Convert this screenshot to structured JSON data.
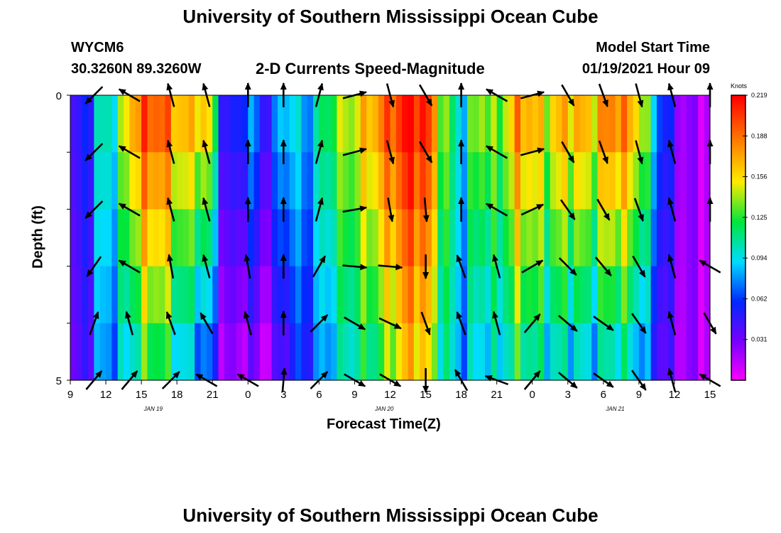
{
  "header": {
    "title": "University of Southern Mississippi Ocean Cube",
    "station": "WYCM6",
    "coords": "30.3260N 89.3260W",
    "subtitle": "2-D Currents Speed-Magnitude",
    "model_start_label": "Model Start Time",
    "model_start_value": "01/19/2021 Hour 09",
    "footer_title": "University of Southern Mississippi Ocean Cube"
  },
  "chart_data": {
    "type": "heatmap",
    "title": "2-D Currents Speed-Magnitude",
    "xlabel": "Forecast Time(Z)",
    "ylabel": "Depth (ft)",
    "x_range_hours": [
      0,
      54
    ],
    "ylim": [
      0,
      5
    ],
    "y_inverted": true,
    "x_tick_labels": [
      "9",
      "12",
      "15",
      "18",
      "21",
      "0",
      "3",
      "6",
      "9",
      "12",
      "15",
      "18",
      "21",
      "0",
      "3",
      "6",
      "9",
      "12",
      "15"
    ],
    "y_tick_labels": [
      "0",
      "5"
    ],
    "date_labels": [
      {
        "text": "JAN 19",
        "hour": 7
      },
      {
        "text": "JAN 20",
        "hour": 26.5
      },
      {
        "text": "JAN 21",
        "hour": 46
      }
    ],
    "colorbar": {
      "unit": "Knots",
      "ticks": [
        "0.219",
        "0.188",
        "0.156",
        "0.125",
        "0.094",
        "0.062",
        "0.031"
      ],
      "min": 0.0,
      "max": 0.219
    },
    "depth_layers": 5,
    "speed_profile_knots": {
      "hours": [
        0,
        1.5,
        2.5,
        4,
        5,
        6,
        7,
        8,
        9,
        10,
        11,
        12,
        13,
        14,
        15,
        16,
        17,
        18,
        20,
        22,
        24,
        26,
        28,
        29,
        30,
        31,
        32,
        33,
        34,
        35,
        36,
        37,
        38,
        39,
        40,
        42,
        44,
        46,
        48,
        50,
        51,
        52,
        53,
        54
      ],
      "surface": [
        0.03,
        0.06,
        0.1,
        0.11,
        0.17,
        0.19,
        0.2,
        0.19,
        0.17,
        0.16,
        0.17,
        0.14,
        0.04,
        0.05,
        0.08,
        0.06,
        0.05,
        0.1,
        0.08,
        0.13,
        0.15,
        0.18,
        0.21,
        0.219,
        0.21,
        0.16,
        0.12,
        0.09,
        0.13,
        0.15,
        0.12,
        0.16,
        0.18,
        0.17,
        0.15,
        0.17,
        0.16,
        0.19,
        0.16,
        0.06,
        0.04,
        0.02,
        0.02,
        0.02
      ],
      "bottom": [
        0.02,
        0.05,
        0.08,
        0.08,
        0.1,
        0.12,
        0.13,
        0.12,
        0.1,
        0.09,
        0.08,
        0.06,
        0.02,
        0.02,
        0.03,
        0.02,
        0.02,
        0.05,
        0.06,
        0.09,
        0.11,
        0.12,
        0.16,
        0.17,
        0.16,
        0.12,
        0.1,
        0.08,
        0.09,
        0.1,
        0.09,
        0.11,
        0.12,
        0.11,
        0.1,
        0.1,
        0.09,
        0.11,
        0.09,
        0.04,
        0.03,
        0.02,
        0.02,
        0.02
      ]
    },
    "vector_columns_hours": [
      2,
      5,
      8.5,
      11.5,
      15,
      18,
      21,
      24,
      27,
      30,
      33,
      36,
      39,
      42,
      45,
      48,
      50.8,
      54
    ],
    "vector_angles_deg": [
      [
        225,
        300,
        345,
        345,
        0,
        0,
        15,
        75,
        165,
        150,
        0,
        300,
        75,
        150,
        160,
        165,
        345,
        0
      ],
      [
        225,
        300,
        345,
        345,
        0,
        0,
        15,
        75,
        165,
        150,
        0,
        300,
        75,
        150,
        160,
        165,
        345,
        0
      ],
      [
        225,
        300,
        345,
        345,
        0,
        0,
        15,
        80,
        170,
        175,
        0,
        300,
        65,
        145,
        150,
        160,
        345,
        0
      ],
      [
        215,
        300,
        350,
        345,
        350,
        0,
        30,
        95,
        95,
        180,
        340,
        345,
        60,
        135,
        140,
        150,
        345,
        300
      ],
      [
        20,
        345,
        340,
        330,
        345,
        0,
        45,
        120,
        115,
        160,
        340,
        345,
        40,
        130,
        125,
        145,
        345,
        150
      ],
      [
        40,
        40,
        45,
        300,
        300,
        5,
        45,
        120,
        120,
        180,
        330,
        290,
        40,
        130,
        125,
        145,
        345,
        300
      ]
    ]
  }
}
